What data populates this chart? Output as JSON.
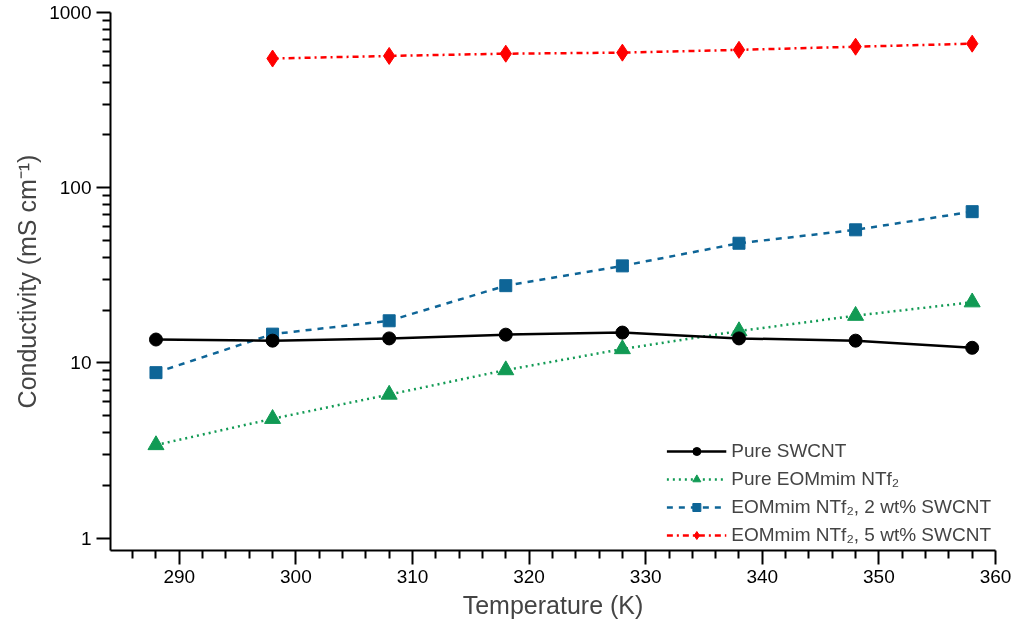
{
  "chart_data": {
    "type": "line",
    "xlabel": "Temperature (K)",
    "ylabel": "Conductivity (mS cm⁻¹)",
    "x": [
      288,
      298,
      308,
      318,
      328,
      338,
      348,
      358
    ],
    "series": [
      {
        "name": "Pure SWCNT",
        "color": "#000000",
        "marker": "circle",
        "line_style": "solid",
        "values": [
          13.6,
          13.4,
          13.8,
          14.5,
          14.9,
          13.8,
          13.4,
          12.2
        ]
      },
      {
        "name": "Pure EOMmim NTf₂",
        "color": "#119a54",
        "marker": "triangle",
        "line_style": "dotted",
        "values": [
          3.4,
          4.8,
          6.6,
          9.1,
          12.0,
          15.2,
          18.6,
          22.2
        ]
      },
      {
        "name": "EOMmim NTf₂, 2 wt% SWCNT",
        "color": "#0e6597",
        "marker": "square",
        "line_style": "dashed",
        "values": [
          8.8,
          14.6,
          17.4,
          27.6,
          35.8,
          48.2,
          57.5,
          73.0
        ]
      },
      {
        "name": "EOMmim NTf₂, 5 wt% SWCNT",
        "color": "#ff0000",
        "marker": "diamond",
        "line_style": "dashdot",
        "values": [
          null,
          546,
          565,
          582,
          590,
          612,
          638,
          664
        ]
      }
    ],
    "log": "y",
    "grid": false,
    "legend": "bottom right",
    "xlim": [
      284.1,
      360
    ],
    "xticks": [
      {
        "value": 286,
        "label": null
      },
      {
        "value": 288,
        "label": null
      },
      290,
      {
        "value": 292,
        "label": null
      },
      {
        "value": 294,
        "label": null
      },
      {
        "value": 296,
        "label": null
      },
      {
        "value": 298,
        "label": null
      },
      300,
      {
        "value": 302,
        "label": null
      },
      {
        "value": 304,
        "label": null
      },
      {
        "value": 306,
        "label": null
      },
      {
        "value": 308,
        "label": null
      },
      310,
      {
        "value": 312,
        "label": null
      },
      {
        "value": 314,
        "label": null
      },
      {
        "value": 316,
        "label": null
      },
      {
        "value": 318,
        "label": null
      },
      320,
      {
        "value": 322,
        "label": null
      },
      {
        "value": 324,
        "label": null
      },
      {
        "value": 326,
        "label": null
      },
      {
        "value": 328,
        "label": null
      },
      330,
      {
        "value": 332,
        "label": null
      },
      {
        "value": 334,
        "label": null
      },
      {
        "value": 336,
        "label": null
      },
      {
        "value": 338,
        "label": null
      },
      340,
      {
        "value": 342,
        "label": null
      },
      {
        "value": 344,
        "label": null
      },
      {
        "value": 346,
        "label": null
      },
      {
        "value": 348,
        "label": null
      },
      350,
      {
        "value": 352,
        "label": null
      },
      {
        "value": 354,
        "label": null
      },
      {
        "value": 356,
        "label": null
      },
      {
        "value": 358,
        "label": null
      },
      360
    ],
    "ylim": [
      0.85,
      1000
    ],
    "yticks": [
      1,
      {
        "value": 2,
        "label": null
      },
      {
        "value": 3,
        "label": null
      },
      {
        "value": 4,
        "label": null
      },
      {
        "value": 5,
        "label": null
      },
      {
        "value": 6,
        "label": null
      },
      {
        "value": 7,
        "label": null
      },
      {
        "value": 8,
        "label": null
      },
      {
        "value": 9,
        "label": null
      },
      10,
      {
        "value": 20,
        "label": null
      },
      {
        "value": 30,
        "label": null
      },
      {
        "value": 40,
        "label": null
      },
      {
        "value": 50,
        "label": null
      },
      {
        "value": 60,
        "label": null
      },
      {
        "value": 70,
        "label": null
      },
      {
        "value": 80,
        "label": null
      },
      {
        "value": 90,
        "label": null
      },
      100,
      {
        "value": 200,
        "label": null
      },
      {
        "value": 300,
        "label": null
      },
      {
        "value": 400,
        "label": null
      },
      {
        "value": 500,
        "label": null
      },
      {
        "value": 600,
        "label": null
      },
      {
        "value": 700,
        "label": null
      },
      {
        "value": 800,
        "label": null
      },
      {
        "value": 900,
        "label": null
      },
      1000
    ]
  }
}
